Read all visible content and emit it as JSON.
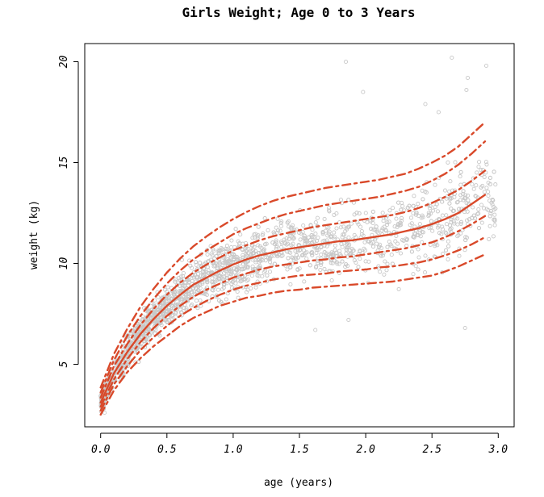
{
  "chart_data": {
    "type": "scatter",
    "title": "Girls Weight; Age 0 to 3 Years",
    "xlabel": "age (years)",
    "ylabel": "weight (kg)",
    "xlim": [
      -0.12,
      3.12
    ],
    "ylim": [
      1.9,
      20.9
    ],
    "x_ticks": [
      0.0,
      0.5,
      1.0,
      1.5,
      2.0,
      2.5,
      3.0
    ],
    "x_tick_labels": [
      "0.0",
      "0.5",
      "1.0",
      "1.5",
      "2.0",
      "2.5",
      "3.0"
    ],
    "y_ticks": [
      5,
      10,
      15,
      20
    ],
    "y_tick_labels": [
      "5",
      "10",
      "15",
      "20"
    ],
    "grid": false,
    "colors": {
      "points": "#c8c8c8",
      "curves": "#d9492a",
      "frame": "#000000"
    },
    "points_summary": "about 2000 girls' weight observations (gray open circles), denser below 1 year",
    "outliers": [
      {
        "x": 1.85,
        "y": 20.0
      },
      {
        "x": 2.65,
        "y": 20.2
      },
      {
        "x": 2.77,
        "y": 19.2
      },
      {
        "x": 2.91,
        "y": 19.8
      },
      {
        "x": 2.76,
        "y": 18.6
      },
      {
        "x": 2.45,
        "y": 17.9
      },
      {
        "x": 1.98,
        "y": 18.5
      },
      {
        "x": 2.55,
        "y": 17.5
      },
      {
        "x": 1.87,
        "y": 7.2
      },
      {
        "x": 2.75,
        "y": 6.8
      },
      {
        "x": 1.62,
        "y": 6.7
      },
      {
        "x": 0.03,
        "y": 2.6
      }
    ],
    "series": [
      {
        "name": "",
        "style": "dashed",
        "x": [
          0.0,
          0.1,
          0.2,
          0.3,
          0.4,
          0.5,
          0.6,
          0.7,
          0.8,
          0.9,
          1.0,
          1.1,
          1.2,
          1.3,
          1.4,
          1.5,
          1.6,
          1.7,
          1.8,
          1.9,
          2.0,
          2.1,
          2.2,
          2.3,
          2.4,
          2.5,
          2.6,
          2.7,
          2.8,
          2.9
        ],
        "y": [
          2.5,
          3.7,
          4.6,
          5.3,
          5.9,
          6.4,
          6.9,
          7.3,
          7.6,
          7.9,
          8.1,
          8.3,
          8.4,
          8.55,
          8.65,
          8.7,
          8.8,
          8.85,
          8.9,
          8.95,
          9.0,
          9.05,
          9.1,
          9.2,
          9.3,
          9.4,
          9.6,
          9.85,
          10.15,
          10.45
        ]
      },
      {
        "name": "",
        "style": "dashed",
        "x": [
          0.0,
          0.1,
          0.2,
          0.3,
          0.4,
          0.5,
          0.6,
          0.7,
          0.8,
          0.9,
          1.0,
          1.1,
          1.2,
          1.3,
          1.4,
          1.5,
          1.6,
          1.7,
          1.8,
          1.9,
          2.0,
          2.1,
          2.2,
          2.3,
          2.4,
          2.5,
          2.6,
          2.7,
          2.8,
          2.9
        ],
        "y": [
          2.7,
          4.0,
          4.9,
          5.7,
          6.35,
          6.9,
          7.4,
          7.8,
          8.15,
          8.45,
          8.7,
          8.9,
          9.05,
          9.2,
          9.3,
          9.4,
          9.45,
          9.5,
          9.6,
          9.65,
          9.7,
          9.8,
          9.85,
          9.95,
          10.05,
          10.2,
          10.4,
          10.65,
          10.95,
          11.3
        ]
      },
      {
        "name": "",
        "style": "dashed",
        "x": [
          0.0,
          0.1,
          0.2,
          0.3,
          0.4,
          0.5,
          0.6,
          0.7,
          0.8,
          0.9,
          1.0,
          1.1,
          1.2,
          1.3,
          1.4,
          1.5,
          1.6,
          1.7,
          1.8,
          1.9,
          2.0,
          2.1,
          2.2,
          2.3,
          2.4,
          2.5,
          2.6,
          2.7,
          2.8,
          2.9
        ],
        "y": [
          2.9,
          4.25,
          5.25,
          6.1,
          6.8,
          7.4,
          7.9,
          8.35,
          8.7,
          9.0,
          9.3,
          9.5,
          9.7,
          9.85,
          9.95,
          10.05,
          10.15,
          10.2,
          10.3,
          10.35,
          10.45,
          10.55,
          10.65,
          10.75,
          10.9,
          11.05,
          11.3,
          11.6,
          11.95,
          12.35
        ]
      },
      {
        "name": "",
        "style": "solid",
        "x": [
          0.0,
          0.1,
          0.2,
          0.3,
          0.4,
          0.5,
          0.6,
          0.7,
          0.8,
          0.9,
          1.0,
          1.1,
          1.2,
          1.3,
          1.4,
          1.5,
          1.6,
          1.7,
          1.8,
          1.9,
          2.0,
          2.1,
          2.2,
          2.3,
          2.4,
          2.5,
          2.6,
          2.7,
          2.8,
          2.9
        ],
        "y": [
          3.1,
          4.55,
          5.6,
          6.5,
          7.25,
          7.9,
          8.45,
          8.95,
          9.3,
          9.65,
          9.95,
          10.2,
          10.4,
          10.55,
          10.7,
          10.8,
          10.9,
          11.0,
          11.1,
          11.15,
          11.25,
          11.35,
          11.45,
          11.6,
          11.75,
          11.95,
          12.2,
          12.5,
          12.95,
          13.4
        ]
      },
      {
        "name": "",
        "style": "dashed",
        "x": [
          0.0,
          0.1,
          0.2,
          0.3,
          0.4,
          0.5,
          0.6,
          0.7,
          0.8,
          0.9,
          1.0,
          1.1,
          1.2,
          1.3,
          1.4,
          1.5,
          1.6,
          1.7,
          1.8,
          1.9,
          2.0,
          2.1,
          2.2,
          2.3,
          2.4,
          2.5,
          2.6,
          2.7,
          2.8,
          2.9
        ],
        "y": [
          3.35,
          4.9,
          6.0,
          6.95,
          7.75,
          8.45,
          9.05,
          9.55,
          9.95,
          10.3,
          10.65,
          10.9,
          11.15,
          11.35,
          11.5,
          11.65,
          11.8,
          11.9,
          12.0,
          12.1,
          12.2,
          12.3,
          12.4,
          12.55,
          12.75,
          13.0,
          13.3,
          13.65,
          14.1,
          14.6
        ]
      },
      {
        "name": "",
        "style": "dashed",
        "x": [
          0.0,
          0.1,
          0.2,
          0.3,
          0.4,
          0.5,
          0.6,
          0.7,
          0.8,
          0.9,
          1.0,
          1.1,
          1.2,
          1.3,
          1.4,
          1.5,
          1.6,
          1.7,
          1.8,
          1.9,
          2.0,
          2.1,
          2.2,
          2.3,
          2.4,
          2.5,
          2.6,
          2.7,
          2.8,
          2.9
        ],
        "y": [
          3.6,
          5.2,
          6.4,
          7.4,
          8.25,
          9.0,
          9.65,
          10.2,
          10.65,
          11.05,
          11.45,
          11.75,
          12.0,
          12.25,
          12.45,
          12.6,
          12.75,
          12.9,
          13.0,
          13.1,
          13.2,
          13.3,
          13.45,
          13.6,
          13.8,
          14.1,
          14.45,
          14.9,
          15.45,
          16.05
        ]
      },
      {
        "name": "",
        "style": "dashed",
        "x": [
          0.0,
          0.1,
          0.2,
          0.3,
          0.4,
          0.5,
          0.6,
          0.7,
          0.8,
          0.9,
          1.0,
          1.1,
          1.2,
          1.3,
          1.4,
          1.5,
          1.6,
          1.7,
          1.8,
          1.9,
          2.0,
          2.1,
          2.2,
          2.3,
          2.4,
          2.5,
          2.6,
          2.7,
          2.8,
          2.9
        ],
        "y": [
          3.85,
          5.5,
          6.75,
          7.85,
          8.75,
          9.55,
          10.25,
          10.85,
          11.35,
          11.8,
          12.2,
          12.55,
          12.85,
          13.1,
          13.3,
          13.45,
          13.6,
          13.75,
          13.85,
          13.95,
          14.05,
          14.15,
          14.3,
          14.45,
          14.7,
          15.0,
          15.35,
          15.8,
          16.4,
          17.0
        ]
      }
    ]
  }
}
